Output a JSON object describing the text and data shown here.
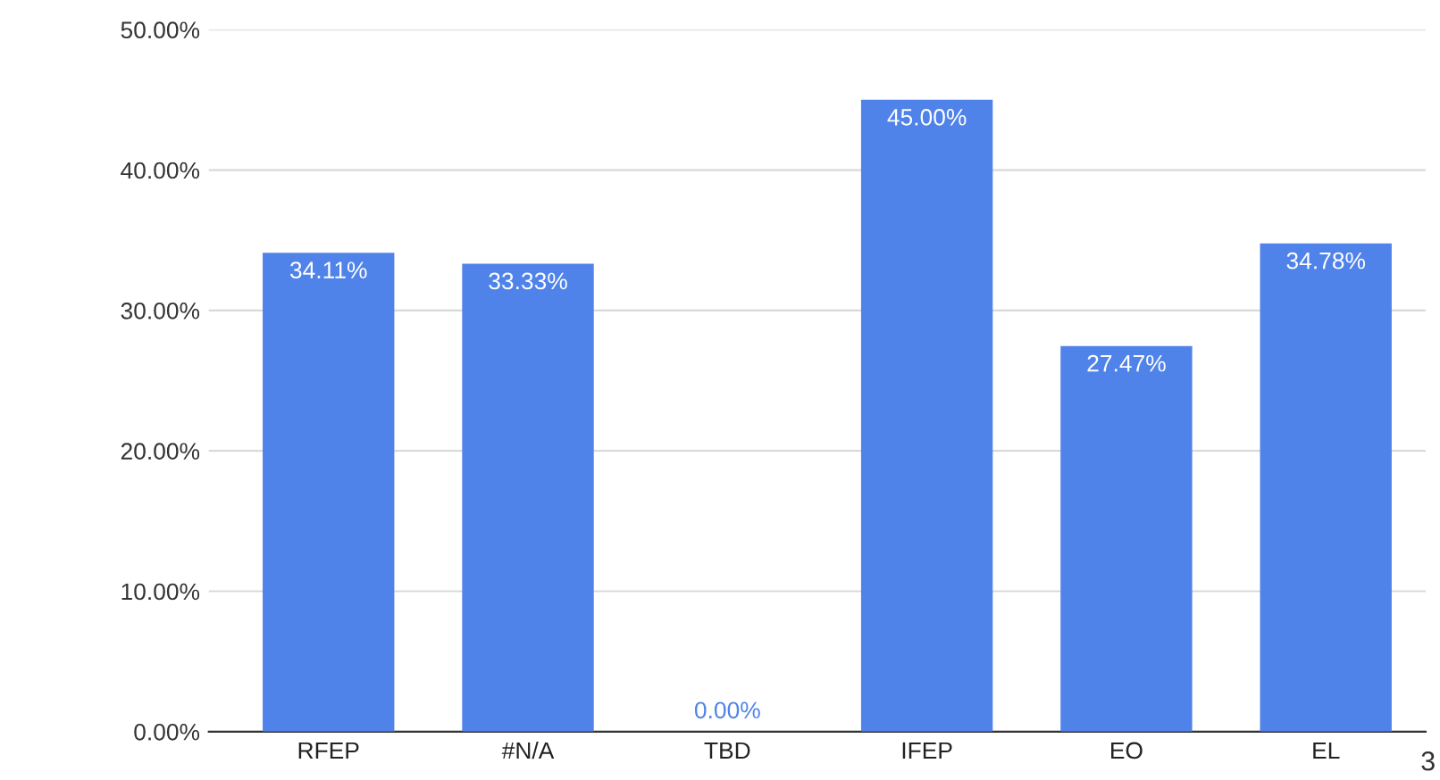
{
  "chart_data": {
    "type": "bar",
    "categories": [
      "RFEP",
      "#N/A",
      "TBD",
      "IFEP",
      "EO",
      "EL"
    ],
    "values": [
      34.11,
      33.33,
      0.0,
      45.0,
      27.47,
      34.78
    ],
    "value_labels": [
      "34.11%",
      "33.33%",
      "0.00%",
      "45.00%",
      "27.47%",
      "34.78%"
    ],
    "color": "#5083e9",
    "ylim": [
      0,
      50
    ],
    "yticks": [
      {
        "value": 0,
        "label": "0.00%"
      },
      {
        "value": 10,
        "label": "10.00%"
      },
      {
        "value": 20,
        "label": "20.00%"
      },
      {
        "value": 30,
        "label": "30.00%"
      },
      {
        "value": 40,
        "label": "40.00%"
      },
      {
        "value": 50,
        "label": "50.00%"
      }
    ],
    "grid": "y",
    "annotations": [
      "3"
    ]
  }
}
